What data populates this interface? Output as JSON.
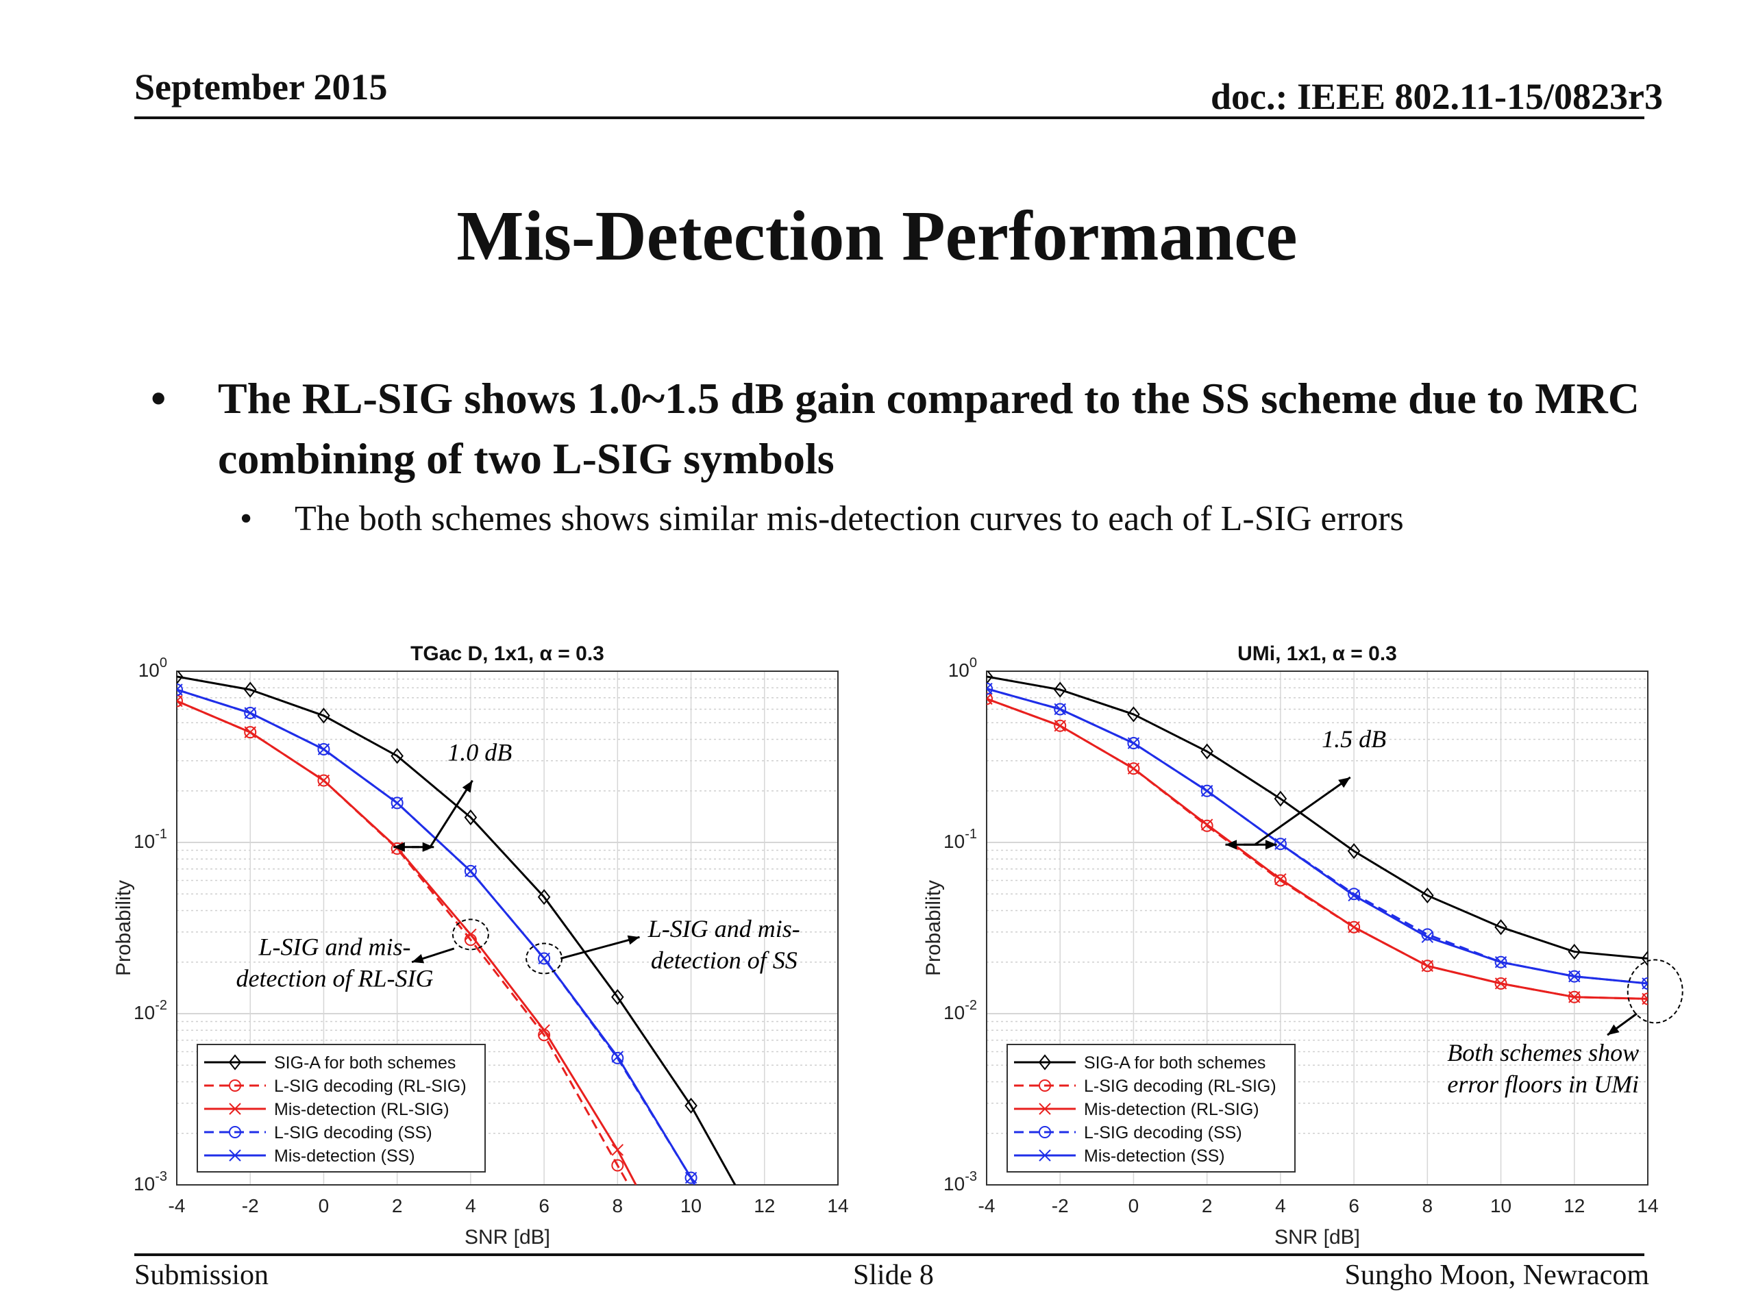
{
  "header": {
    "date": "September 2015",
    "doc": "doc.: IEEE 802.11-15/0823r3"
  },
  "title": "Mis-Detection Performance",
  "bullets": {
    "main": "The RL-SIG shows 1.0~1.5 dB gain compared to the SS scheme due to MRC combining of two L-SIG symbols",
    "sub": "The both schemes shows similar mis-detection curves to each of L-SIG errors"
  },
  "footer": {
    "left": "Submission",
    "center": "Slide 8",
    "right": "Sungho Moon, Newracom"
  },
  "chart_data": [
    {
      "type": "line",
      "title": "TGac D, 1x1, α = 0.3",
      "xlabel": "SNR [dB]",
      "ylabel": "Probability",
      "xlim": [
        -4,
        14
      ],
      "ylim": [
        0.001,
        1
      ],
      "yscale": "log",
      "grid": true,
      "legend_position": "bottom-left",
      "x_ticks": [
        "-4",
        "-2",
        "0",
        "2",
        "4",
        "6",
        "8",
        "10",
        "12",
        "14"
      ],
      "y_ticks": [
        "10^0",
        "10^-1",
        "10^-2",
        "10^-3"
      ],
      "series": [
        {
          "name": "SIG-A for both schemes",
          "color": "#000000",
          "dash": "solid",
          "marker": "diamond",
          "x": [
            -4,
            -2,
            0,
            2,
            4,
            6,
            8,
            10,
            11.2
          ],
          "y": [
            0.93,
            0.78,
            0.55,
            0.32,
            0.14,
            0.048,
            0.0125,
            0.0029,
            0.001
          ]
        },
        {
          "name": "L-SIG decoding (RL-SIG)",
          "color": "#e8201e",
          "dash": "dashed",
          "marker": "circle",
          "x": [
            -4,
            -2,
            0,
            2,
            4,
            6,
            8,
            8.3
          ],
          "y": [
            0.67,
            0.44,
            0.23,
            0.092,
            0.027,
            0.0075,
            0.0013,
            0.001
          ]
        },
        {
          "name": "Mis-detection (RL-SIG)",
          "color": "#e8201e",
          "dash": "solid",
          "marker": "x",
          "x": [
            -4,
            -2,
            0,
            2,
            4,
            6,
            8,
            8.5
          ],
          "y": [
            0.67,
            0.44,
            0.23,
            0.093,
            0.029,
            0.008,
            0.0016,
            0.001
          ]
        },
        {
          "name": "L-SIG decoding (SS)",
          "color": "#1f2ee8",
          "dash": "dashed",
          "marker": "circle",
          "x": [
            -4,
            -2,
            0,
            2,
            4,
            6,
            8,
            10,
            10.1
          ],
          "y": [
            0.78,
            0.57,
            0.35,
            0.17,
            0.068,
            0.021,
            0.0055,
            0.0011,
            0.001
          ]
        },
        {
          "name": "Mis-detection (SS)",
          "color": "#1f2ee8",
          "dash": "solid",
          "marker": "x",
          "x": [
            -4,
            -2,
            0,
            2,
            4,
            6,
            8,
            10,
            10.1
          ],
          "y": [
            0.78,
            0.57,
            0.35,
            0.17,
            0.068,
            0.021,
            0.0056,
            0.0011,
            0.001
          ]
        }
      ],
      "annotations": [
        "1.0 dB",
        "L-SIG and mis-detection of RL-SIG",
        "L-SIG and mis-detection of SS"
      ]
    },
    {
      "type": "line",
      "title": "UMi, 1x1, α = 0.3",
      "xlabel": "SNR [dB]",
      "ylabel": "Probability",
      "xlim": [
        -4,
        14
      ],
      "ylim": [
        0.001,
        1
      ],
      "yscale": "log",
      "grid": true,
      "legend_position": "bottom-left",
      "x_ticks": [
        "-4",
        "-2",
        "0",
        "2",
        "4",
        "6",
        "8",
        "10",
        "12",
        "14"
      ],
      "y_ticks": [
        "10^0",
        "10^-1",
        "10^-2",
        "10^-3"
      ],
      "series": [
        {
          "name": "SIG-A for both schemes",
          "color": "#000000",
          "dash": "solid",
          "marker": "diamond",
          "x": [
            -4,
            -2,
            0,
            2,
            4,
            6,
            8,
            10,
            12,
            14
          ],
          "y": [
            0.93,
            0.78,
            0.56,
            0.34,
            0.18,
            0.089,
            0.049,
            0.032,
            0.023,
            0.021
          ]
        },
        {
          "name": "L-SIG decoding (RL-SIG)",
          "color": "#e8201e",
          "dash": "dashed",
          "marker": "circle",
          "x": [
            -4,
            -2,
            0,
            2,
            4,
            6,
            8,
            10,
            12,
            14
          ],
          "y": [
            0.69,
            0.48,
            0.27,
            0.125,
            0.06,
            0.032,
            0.019,
            0.015,
            0.0125,
            0.0122
          ]
        },
        {
          "name": "Mis-detection (RL-SIG)",
          "color": "#e8201e",
          "dash": "solid",
          "marker": "x",
          "x": [
            -4,
            -2,
            0,
            2,
            4,
            6,
            8,
            10,
            12,
            14
          ],
          "y": [
            0.69,
            0.48,
            0.27,
            0.127,
            0.061,
            0.032,
            0.019,
            0.015,
            0.0125,
            0.0122
          ]
        },
        {
          "name": "L-SIG decoding (SS)",
          "color": "#1f2ee8",
          "dash": "dashed",
          "marker": "circle",
          "x": [
            -4,
            -2,
            0,
            2,
            4,
            6,
            8,
            10,
            12,
            14
          ],
          "y": [
            0.79,
            0.6,
            0.38,
            0.2,
            0.098,
            0.05,
            0.029,
            0.02,
            0.0165,
            0.015
          ]
        },
        {
          "name": "Mis-detection (SS)",
          "color": "#1f2ee8",
          "dash": "solid",
          "marker": "x",
          "x": [
            -4,
            -2,
            0,
            2,
            4,
            6,
            8,
            10,
            12,
            14
          ],
          "y": [
            0.79,
            0.6,
            0.38,
            0.2,
            0.098,
            0.049,
            0.028,
            0.02,
            0.0165,
            0.015
          ]
        }
      ],
      "annotations": [
        "1.5 dB",
        "Both schemes show error floors in UMi"
      ]
    }
  ]
}
